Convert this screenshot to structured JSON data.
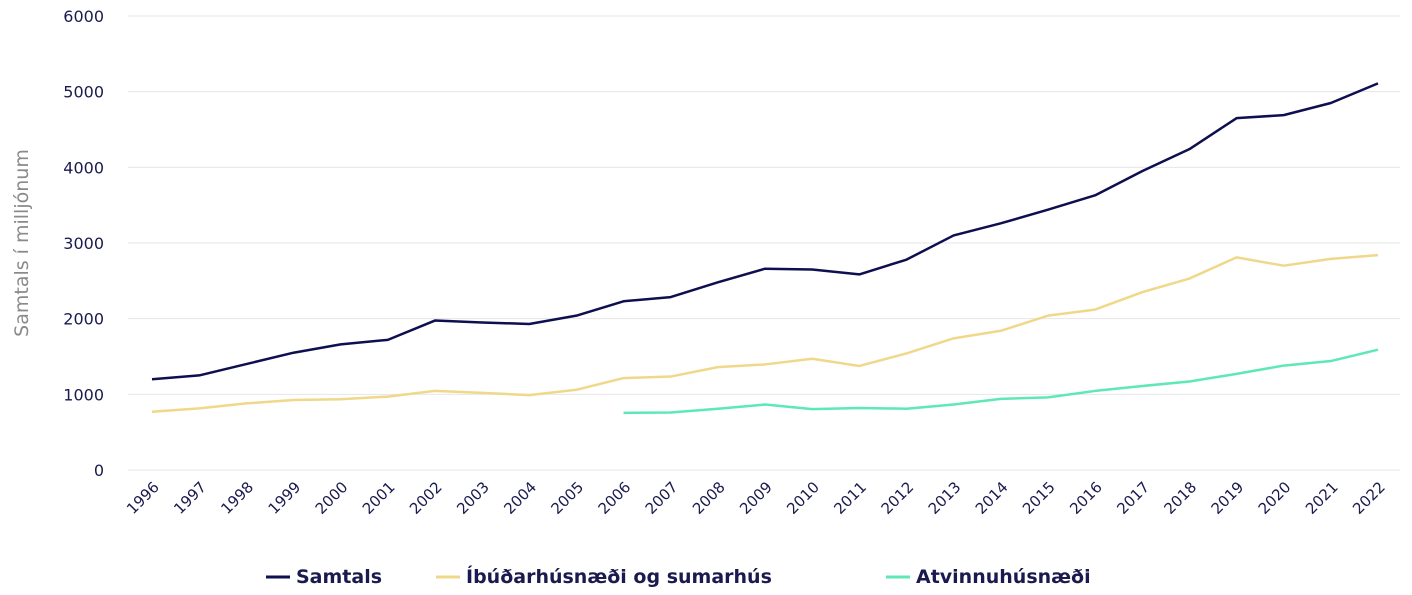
{
  "chart_data": {
    "type": "line",
    "y_label": "Samtals í milljónum",
    "categories": [
      "1996",
      "1997",
      "1998",
      "1999",
      "2000",
      "2001",
      "2002",
      "2003",
      "2004",
      "2005",
      "2006",
      "2007",
      "2008",
      "2009",
      "2010",
      "2011",
      "2012",
      "2013",
      "2014",
      "2015",
      "2016",
      "2017",
      "2018",
      "2019",
      "2020",
      "2021",
      "2022"
    ],
    "series": [
      {
        "name": "Samtals",
        "color": "#0d0f4f",
        "values": [
          1200,
          1250,
          1400,
          1550,
          1660,
          1720,
          1975,
          1950,
          1930,
          2040,
          2230,
          2285,
          2480,
          2660,
          2650,
          2585,
          2780,
          3100,
          3260,
          3440,
          3630,
          3950,
          4240,
          4650,
          4690,
          4850,
          5110
        ]
      },
      {
        "name": "Íbúðarhúsnæði og sumarhús",
        "color": "#f0d88a",
        "values": [
          770,
          815,
          880,
          925,
          935,
          970,
          1045,
          1020,
          990,
          1060,
          1215,
          1235,
          1360,
          1395,
          1470,
          1375,
          1540,
          1740,
          1840,
          2040,
          2120,
          2350,
          2530,
          2810,
          2700,
          2790,
          2840
        ]
      },
      {
        "name": "Atvinnuhúsnæði",
        "color": "#5ee8b5",
        "values": [
          null,
          null,
          null,
          null,
          null,
          null,
          null,
          null,
          null,
          null,
          755,
          760,
          810,
          865,
          805,
          820,
          810,
          865,
          940,
          960,
          1045,
          1110,
          1170,
          1270,
          1380,
          1440,
          1590
        ]
      }
    ],
    "ylim": [
      0,
      6000
    ],
    "yticks": [
      0,
      1000,
      2000,
      3000,
      4000,
      5000,
      6000
    ],
    "grid": true,
    "legend": "bottom"
  }
}
